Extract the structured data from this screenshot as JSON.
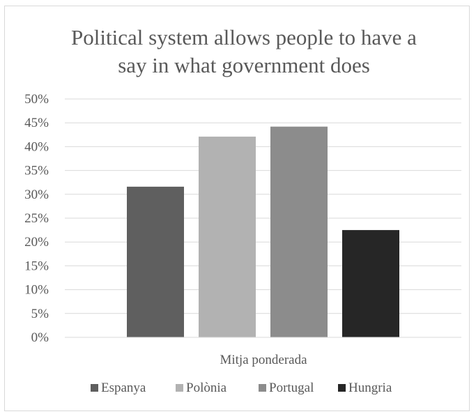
{
  "chart_data": {
    "type": "bar",
    "title_lines": [
      "Political system allows people to have a",
      "say in what government does"
    ],
    "categories": [
      "Mitja ponderada"
    ],
    "series": [
      {
        "name": "Espanya",
        "values": [
          31.6
        ],
        "color": "#5f5f5f"
      },
      {
        "name": "Polònia",
        "values": [
          42.1
        ],
        "color": "#b2b2b2"
      },
      {
        "name": "Portugal",
        "values": [
          44.2
        ],
        "color": "#8c8c8c"
      },
      {
        "name": "Hungria",
        "values": [
          22.5
        ],
        "color": "#262626"
      }
    ],
    "ylim": [
      0,
      50
    ],
    "ytick_step": 5,
    "ytick_format": "percent",
    "grid": true,
    "legend": "bottom",
    "gridline_color": "#d9d9d9"
  }
}
